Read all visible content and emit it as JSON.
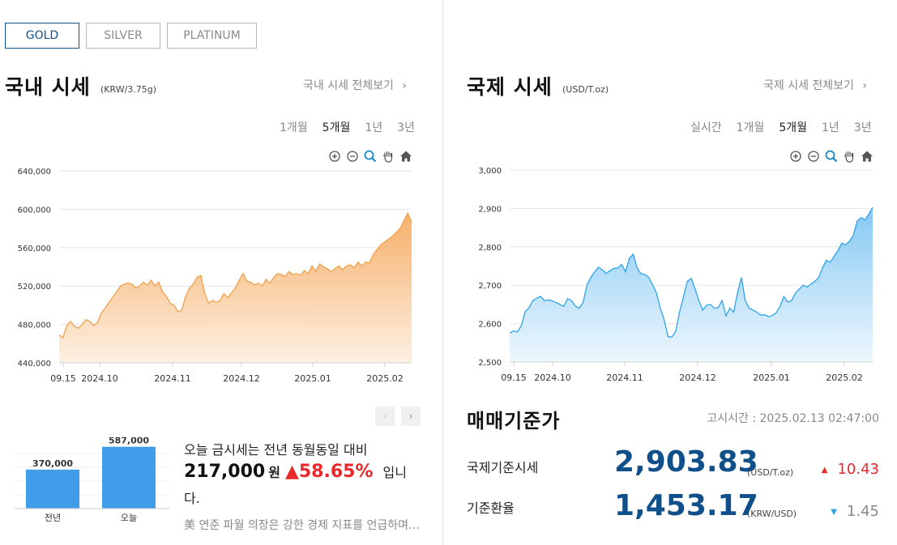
{
  "tabs": [
    {
      "label": "GOLD",
      "active": true
    },
    {
      "label": "SILVER",
      "active": false
    },
    {
      "label": "PLATINUM",
      "active": false
    }
  ],
  "domestic": {
    "title": "국내 시세",
    "unit": "(KRW/3.75g)",
    "more_link": "국내 시세 전체보기",
    "periods": [
      "1개월",
      "5개월",
      "1년",
      "3년"
    ],
    "active_period": "5개월",
    "chart_colors": {
      "line": "#f0a04b",
      "fill_top": "#f7b06a",
      "fill_bottom": "#fdf0e2"
    }
  },
  "international": {
    "title": "국제 시세",
    "unit": "(USD/T.oz)",
    "more_link": "국제 시세 전체보기",
    "periods": [
      "실시간",
      "1개월",
      "5개월",
      "1년",
      "3년"
    ],
    "active_period": "5개월",
    "chart_colors": {
      "line": "#2ea3ea",
      "fill_top": "#86c9f4",
      "fill_bottom": "#eef7fd"
    }
  },
  "toolbar_icons": [
    "zoom-in-icon",
    "zoom-out-icon",
    "magnifier-icon",
    "pan-hand-icon",
    "home-icon"
  ],
  "chart_data": [
    {
      "type": "area",
      "x_ticks": [
        "09.15",
        "2024.10",
        "2024.11",
        "2024.12",
        "2025.01",
        "2025.02"
      ],
      "y_ticks": [
        "440,000",
        "480,000",
        "520,000",
        "560,000",
        "600,000",
        "640,000"
      ],
      "ylim": [
        440000,
        640000
      ],
      "grid": true,
      "series": [
        {
          "values": [
            469000,
            466000,
            479000,
            483000,
            478000,
            476000,
            480000,
            485000,
            483000,
            479000,
            482000,
            492000,
            497000,
            503000,
            508000,
            514000,
            520000,
            522000,
            523000,
            522000,
            518000,
            520000,
            524000,
            521000,
            526000,
            520000,
            524000,
            514000,
            509000,
            502000,
            500000,
            493000,
            495000,
            509000,
            518000,
            522000,
            529000,
            531000,
            512000,
            502000,
            505000,
            503000,
            505000,
            512000,
            508000,
            513000,
            518000,
            526000,
            533000,
            525000,
            524000,
            521000,
            523000,
            520000,
            527000,
            523000,
            529000,
            533000,
            532000,
            530000,
            535000,
            532000,
            533000,
            531000,
            536000,
            533000,
            541000,
            535000,
            543000,
            540000,
            538000,
            535000,
            538000,
            541000,
            537000,
            541000,
            542000,
            539000,
            545000,
            541000,
            545000,
            544000,
            553000,
            558000,
            563000,
            566000,
            569000,
            572000,
            576000,
            580000,
            588000,
            596000,
            586000
          ]
        }
      ]
    },
    {
      "type": "area",
      "x_ticks": [
        "09.15",
        "2024.10",
        "2024.11",
        "2024.12",
        "2025.01",
        "2025.02"
      ],
      "y_ticks": [
        "2,500",
        "2,600",
        "2,700",
        "2,800",
        "2,900",
        "3,000"
      ],
      "ylim": [
        2500,
        3000
      ],
      "grid": true,
      "series": [
        {
          "values": [
            2575,
            2581,
            2578,
            2594,
            2631,
            2641,
            2660,
            2666,
            2671,
            2660,
            2662,
            2659,
            2655,
            2650,
            2645,
            2665,
            2660,
            2646,
            2640,
            2655,
            2700,
            2720,
            2735,
            2747,
            2740,
            2731,
            2738,
            2744,
            2745,
            2754,
            2735,
            2770,
            2781,
            2745,
            2730,
            2728,
            2720,
            2702,
            2680,
            2640,
            2610,
            2566,
            2565,
            2580,
            2630,
            2670,
            2710,
            2718,
            2690,
            2660,
            2635,
            2648,
            2650,
            2640,
            2642,
            2660,
            2620,
            2640,
            2630,
            2680,
            2720,
            2660,
            2640,
            2635,
            2630,
            2622,
            2623,
            2618,
            2621,
            2628,
            2645,
            2670,
            2656,
            2660,
            2680,
            2690,
            2700,
            2695,
            2703,
            2710,
            2720,
            2745,
            2765,
            2760,
            2775,
            2790,
            2810,
            2805,
            2815,
            2830,
            2868,
            2876,
            2870,
            2885,
            2903
          ]
        }
      ]
    },
    {
      "type": "bar",
      "categories": [
        "전년",
        "오늘"
      ],
      "values": [
        370000,
        587000
      ],
      "data_labels": [
        "370,000",
        "587,000"
      ],
      "color": "#3f9dea"
    }
  ],
  "summary": {
    "line1": "오늘 금시세는 전년 동월동일 대비",
    "diff": "217,000",
    "won": "원",
    "pct": "58.65%",
    "suffix": "입니",
    "line3": "다.",
    "news": "美 연준 파월 의장은 강한 경제 지표를 언급하며 금리 인하를 서두르지 않겠다고 밝혔다"
  },
  "standard": {
    "title": "매매기준가",
    "notice": "고시시간 : 2025.02.13 02:47:00",
    "rows": [
      {
        "label": "국제기준시세",
        "value": "2,903.83",
        "unit": "(USD/T.oz)",
        "change": "10.43",
        "direction": "up"
      },
      {
        "label": "기준환율",
        "value": "1,453.17",
        "unit": "(KRW/USD)",
        "change": "1.45",
        "direction": "down"
      }
    ]
  },
  "pager": {
    "prev": "‹",
    "next": "›"
  }
}
